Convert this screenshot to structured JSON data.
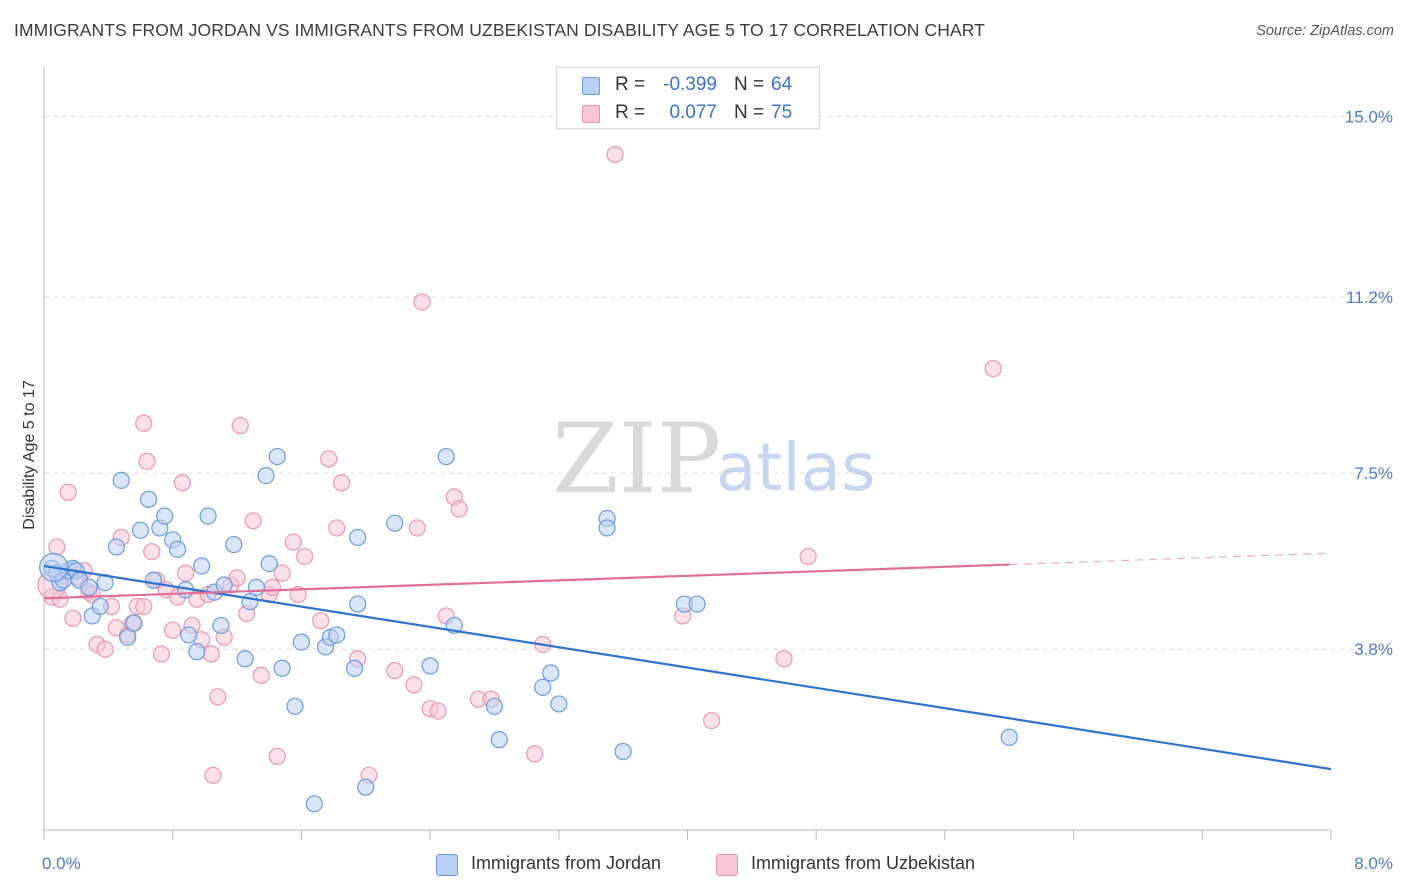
{
  "title": "IMMIGRANTS FROM JORDAN VS IMMIGRANTS FROM UZBEKISTAN DISABILITY AGE 5 TO 17 CORRELATION CHART",
  "source": "Source: ZipAtlas.com",
  "watermark": {
    "part1": "ZIP",
    "part2": "atlas"
  },
  "colors": {
    "jordan_fill": "#b9d1f3",
    "jordan_stroke": "#6c9ae0",
    "jordan_line": "#2f72d0",
    "uzbek_fill": "#f8c6d6",
    "uzbek_stroke": "#e996b2",
    "uzbek_line": "#e46d96",
    "tick_text": "#4a7cc8",
    "grid": "#dddddd"
  },
  "legend": {
    "rows": [
      {
        "r_label": "R =",
        "r_value": "-0.399",
        "n_label": "N =",
        "n_value": "64"
      },
      {
        "r_label": "R =",
        "r_value": "0.077",
        "n_label": "N =",
        "n_value": "75"
      }
    ]
  },
  "chart_data": {
    "type": "scatter",
    "title": "IMMIGRANTS FROM JORDAN VS IMMIGRANTS FROM UZBEKISTAN DISABILITY AGE 5 TO 17 CORRELATION CHART",
    "xlabel": "",
    "ylabel": "Disability Age 5 to 17",
    "xlim": [
      0,
      8
    ],
    "ylim": [
      0,
      15.85
    ],
    "y_ticks": [
      3.8,
      7.5,
      11.2,
      15.0
    ],
    "y_tick_labels": [
      "3.8%",
      "7.5%",
      "11.2%",
      "15.0%"
    ],
    "x_tick_labels": [
      "0.0%",
      "8.0%"
    ],
    "grid": true,
    "legend_position": "top-center",
    "series": [
      {
        "name": "Immigrants from Jordan",
        "R": -0.399,
        "N": 64,
        "trend": {
          "x": [
            0,
            8.0
          ],
          "y": [
            5.55,
            1.28
          ]
        },
        "points": [
          [
            0.05,
            5.5
          ],
          [
            0.08,
            5.4
          ],
          [
            0.1,
            5.2
          ],
          [
            0.12,
            5.25
          ],
          [
            0.15,
            5.45
          ],
          [
            0.18,
            5.5
          ],
          [
            0.2,
            5.45
          ],
          [
            0.22,
            5.25
          ],
          [
            0.28,
            5.1
          ],
          [
            0.3,
            4.5
          ],
          [
            0.35,
            4.7
          ],
          [
            0.38,
            5.2
          ],
          [
            0.45,
            5.95
          ],
          [
            0.48,
            7.35
          ],
          [
            0.52,
            4.05
          ],
          [
            0.56,
            4.35
          ],
          [
            0.6,
            6.3
          ],
          [
            0.65,
            6.95
          ],
          [
            0.68,
            5.25
          ],
          [
            0.72,
            6.35
          ],
          [
            0.75,
            6.6
          ],
          [
            0.8,
            6.1
          ],
          [
            0.83,
            5.9
          ],
          [
            0.88,
            5.05
          ],
          [
            0.9,
            4.1
          ],
          [
            0.95,
            3.75
          ],
          [
            0.98,
            5.55
          ],
          [
            1.02,
            6.6
          ],
          [
            1.06,
            5.0
          ],
          [
            1.1,
            4.3
          ],
          [
            1.12,
            5.15
          ],
          [
            1.18,
            6.0
          ],
          [
            1.25,
            3.6
          ],
          [
            1.28,
            4.8
          ],
          [
            1.32,
            5.1
          ],
          [
            1.38,
            7.45
          ],
          [
            1.4,
            5.6
          ],
          [
            1.45,
            7.85
          ],
          [
            1.48,
            3.4
          ],
          [
            1.56,
            2.6
          ],
          [
            1.6,
            3.95
          ],
          [
            1.68,
            0.55
          ],
          [
            1.75,
            3.85
          ],
          [
            1.78,
            4.05
          ],
          [
            1.82,
            4.1
          ],
          [
            1.93,
            3.4
          ],
          [
            1.95,
            4.75
          ],
          [
            2.0,
            0.9
          ],
          [
            2.18,
            6.45
          ],
          [
            2.4,
            3.45
          ],
          [
            2.5,
            7.85
          ],
          [
            2.55,
            4.3
          ],
          [
            2.8,
            2.6
          ],
          [
            2.83,
            1.9
          ],
          [
            3.1,
            3.0
          ],
          [
            3.15,
            3.3
          ],
          [
            3.2,
            2.65
          ],
          [
            3.6,
            1.65
          ],
          [
            3.5,
            6.55
          ],
          [
            3.5,
            6.35
          ],
          [
            3.98,
            4.75
          ],
          [
            4.06,
            4.75
          ],
          [
            6.0,
            1.95
          ],
          [
            1.95,
            6.15
          ]
        ]
      },
      {
        "name": "Immigrants from Uzbekistan",
        "R": 0.077,
        "N": 75,
        "trend": {
          "x": [
            0,
            6.0,
            8.0
          ],
          "y": [
            4.87,
            5.58,
            5.82
          ],
          "dashed_from": 6.0
        },
        "points": [
          [
            0.05,
            4.9
          ],
          [
            0.08,
            5.95
          ],
          [
            0.1,
            4.85
          ],
          [
            0.12,
            5.35
          ],
          [
            0.15,
            7.1
          ],
          [
            0.18,
            4.45
          ],
          [
            0.22,
            5.3
          ],
          [
            0.25,
            5.45
          ],
          [
            0.28,
            5.0
          ],
          [
            0.3,
            4.95
          ],
          [
            0.33,
            3.9
          ],
          [
            0.38,
            3.8
          ],
          [
            0.42,
            4.7
          ],
          [
            0.45,
            4.25
          ],
          [
            0.48,
            6.15
          ],
          [
            0.52,
            4.1
          ],
          [
            0.55,
            4.35
          ],
          [
            0.58,
            4.7
          ],
          [
            0.62,
            8.55
          ],
          [
            0.64,
            7.75
          ],
          [
            0.67,
            5.85
          ],
          [
            0.7,
            5.25
          ],
          [
            0.73,
            3.7
          ],
          [
            0.76,
            5.05
          ],
          [
            0.8,
            4.2
          ],
          [
            0.83,
            4.9
          ],
          [
            0.86,
            7.3
          ],
          [
            0.88,
            5.4
          ],
          [
            0.92,
            4.3
          ],
          [
            0.95,
            4.85
          ],
          [
            0.98,
            4.0
          ],
          [
            1.02,
            4.95
          ],
          [
            1.04,
            3.7
          ],
          [
            1.05,
            1.15
          ],
          [
            1.08,
            2.8
          ],
          [
            1.12,
            4.05
          ],
          [
            1.16,
            5.15
          ],
          [
            1.2,
            5.3
          ],
          [
            1.22,
            8.5
          ],
          [
            1.26,
            4.55
          ],
          [
            1.3,
            6.5
          ],
          [
            1.35,
            3.25
          ],
          [
            1.4,
            4.95
          ],
          [
            1.42,
            5.1
          ],
          [
            1.45,
            1.55
          ],
          [
            1.48,
            5.4
          ],
          [
            1.55,
            6.05
          ],
          [
            1.58,
            4.95
          ],
          [
            1.62,
            5.75
          ],
          [
            1.72,
            4.4
          ],
          [
            1.77,
            7.8
          ],
          [
            1.82,
            6.35
          ],
          [
            1.85,
            7.3
          ],
          [
            1.95,
            3.6
          ],
          [
            2.02,
            1.15
          ],
          [
            2.18,
            3.35
          ],
          [
            2.3,
            3.05
          ],
          [
            2.32,
            6.35
          ],
          [
            2.35,
            11.1
          ],
          [
            2.4,
            2.55
          ],
          [
            2.45,
            2.5
          ],
          [
            2.5,
            4.5
          ],
          [
            2.55,
            7.0
          ],
          [
            2.58,
            6.75
          ],
          [
            2.7,
            2.75
          ],
          [
            2.78,
            2.75
          ],
          [
            3.05,
            1.6
          ],
          [
            3.1,
            3.9
          ],
          [
            3.97,
            4.5
          ],
          [
            4.15,
            2.3
          ],
          [
            4.6,
            3.6
          ],
          [
            4.75,
            5.75
          ],
          [
            5.9,
            9.7
          ],
          [
            3.55,
            14.2
          ],
          [
            0.62,
            4.7
          ]
        ]
      }
    ]
  }
}
